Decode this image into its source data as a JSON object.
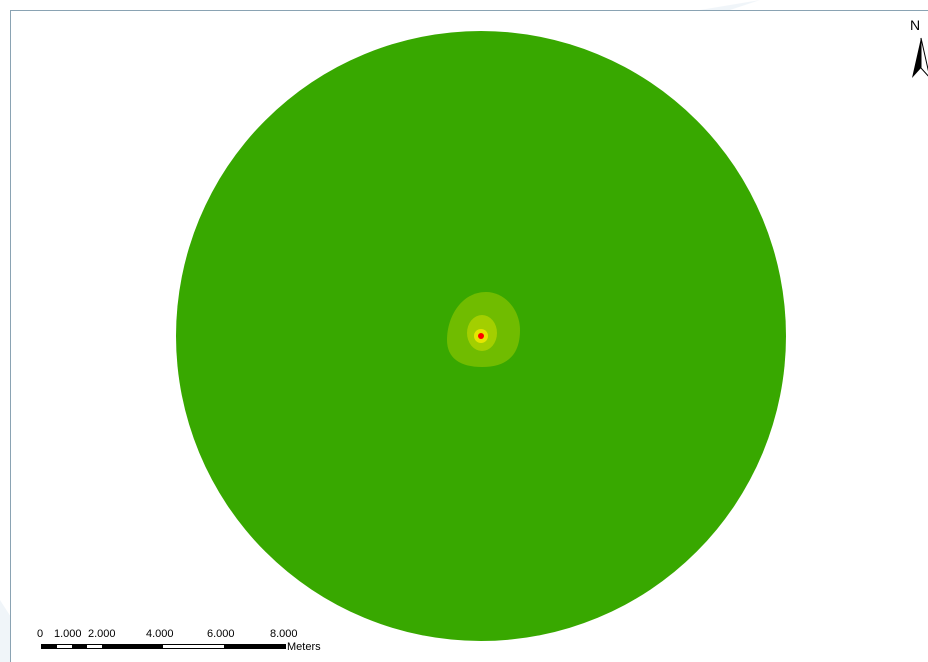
{
  "map": {
    "colors": {
      "outer": "#38a800",
      "ring1": "#70bc00",
      "ring2": "#a3cf00",
      "ring3": "#e6e600",
      "center": "#ff0000",
      "frame": "#8aa3b3"
    }
  },
  "north_arrow": {
    "letter": "N",
    "icon": "north-arrow-icon"
  },
  "scale_bar": {
    "labels": [
      "0",
      "1.000",
      "2.000",
      "4.000",
      "6.000",
      "8.000"
    ],
    "units": "Meters"
  }
}
